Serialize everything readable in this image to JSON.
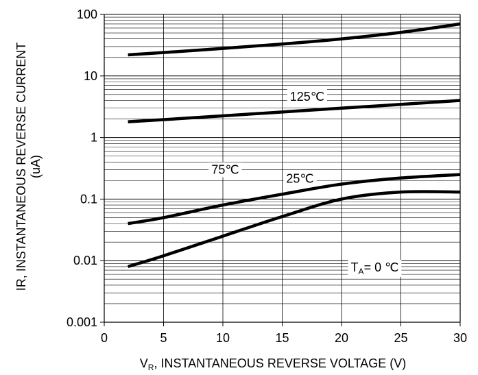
{
  "chart_data": {
    "type": "line",
    "xlabel": "V_R, INSTANTANEOUS REVERSE VOLTAGE (V)",
    "xlabel_main": "V",
    "xlabel_sub": "R",
    "xlabel_rest": ", INSTANTANEOUS REVERSE VOLTAGE (V)",
    "ylabel_line1": "IR, INSTANTANEOUS REVERSE CURRENT",
    "ylabel_line2": "(uA)",
    "xlim": [
      0,
      30
    ],
    "ylim": [
      0.001,
      100
    ],
    "y_scale": "log",
    "grid": true,
    "x_ticks": [
      "0",
      "5",
      "10",
      "15",
      "20",
      "25",
      "30"
    ],
    "y_ticks": [
      "0.001",
      "0.01",
      "0.1",
      "1",
      "10",
      "100"
    ],
    "series": [
      {
        "label": "125℃",
        "x": [
          2,
          5,
          10,
          15,
          20,
          25,
          30
        ],
        "y": [
          22,
          24,
          28,
          33,
          40,
          51,
          70
        ]
      },
      {
        "label": "75℃",
        "x": [
          2,
          5,
          10,
          15,
          20,
          25,
          30
        ],
        "y": [
          1.8,
          1.95,
          2.25,
          2.6,
          3.0,
          3.45,
          4.0
        ]
      },
      {
        "label": "25℃",
        "x": [
          2,
          5,
          10,
          15,
          20,
          25,
          30
        ],
        "y": [
          0.04,
          0.05,
          0.08,
          0.12,
          0.175,
          0.22,
          0.25
        ]
      },
      {
        "label": "T_A= 0 ℃",
        "x": [
          2,
          5,
          10,
          15,
          20,
          25,
          30
        ],
        "y": [
          0.008,
          0.012,
          0.025,
          0.052,
          0.1,
          0.13,
          0.13
        ]
      }
    ],
    "annotations": [
      {
        "series": 0,
        "text": "125℃",
        "x": 17.1,
        "y": 4.6
      },
      {
        "series": 1,
        "text": "75℃",
        "x": 10.2,
        "y": 0.3
      },
      {
        "series": 2,
        "text": "25℃",
        "x": 16.5,
        "y": 0.215
      },
      {
        "series": 3,
        "parts": [
          {
            "text": "T",
            "sub": false
          },
          {
            "text": "A",
            "sub": true
          },
          {
            "text": "= 0 ℃",
            "sub": false
          }
        ],
        "x": 22.8,
        "y": 0.0078
      }
    ]
  },
  "colors": {
    "line": "#000000",
    "grid": "#000000",
    "background": "#ffffff"
  }
}
